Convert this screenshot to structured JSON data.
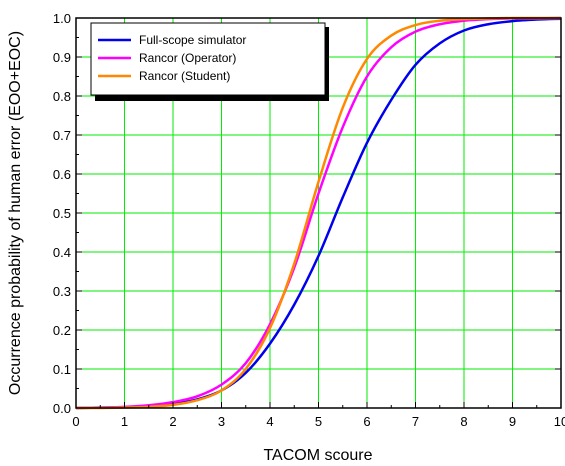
{
  "chart_data": {
    "type": "line",
    "title": "",
    "xlabel": "TACOM scoure",
    "ylabel": "Occurrence probability of human error (EOO+EOC)",
    "xlim": [
      0,
      10
    ],
    "ylim": [
      0,
      1.0
    ],
    "xticks": [
      "0",
      "1",
      "2",
      "3",
      "4",
      "5",
      "6",
      "7",
      "8",
      "9",
      "10"
    ],
    "yticks": [
      "0.0",
      "0.1",
      "0.2",
      "0.3",
      "0.4",
      "0.5",
      "0.6",
      "0.7",
      "0.8",
      "0.9",
      "1.0"
    ],
    "grid": true,
    "grid_color": "#00ee00",
    "legend_position": "top-left",
    "x": [
      0,
      0.5,
      1,
      1.5,
      2,
      2.5,
      3,
      3.5,
      4,
      4.5,
      5,
      5.5,
      6,
      6.5,
      7,
      7.5,
      8,
      8.5,
      9,
      9.5,
      10
    ],
    "series": [
      {
        "name": "Full-scope simulator",
        "color": "#0000ee",
        "values": [
          0.0,
          0.001,
          0.002,
          0.004,
          0.01,
          0.022,
          0.045,
          0.09,
          0.165,
          0.265,
          0.39,
          0.54,
          0.68,
          0.79,
          0.88,
          0.935,
          0.968,
          0.984,
          0.992,
          0.996,
          0.998
        ]
      },
      {
        "name": "Rancor (Operator)",
        "color": "#ff00ff",
        "values": [
          0.0,
          0.001,
          0.003,
          0.007,
          0.015,
          0.03,
          0.06,
          0.115,
          0.215,
          0.36,
          0.55,
          0.72,
          0.85,
          0.925,
          0.965,
          0.984,
          0.993,
          0.997,
          0.999,
          0.999,
          1.0
        ]
      },
      {
        "name": "Rancor (Student)",
        "color": "#ff8800",
        "values": [
          0.0,
          0.0,
          0.001,
          0.003,
          0.008,
          0.02,
          0.045,
          0.1,
          0.205,
          0.37,
          0.58,
          0.77,
          0.895,
          0.955,
          0.982,
          0.993,
          0.997,
          0.999,
          1.0,
          1.0,
          1.0
        ]
      }
    ]
  }
}
